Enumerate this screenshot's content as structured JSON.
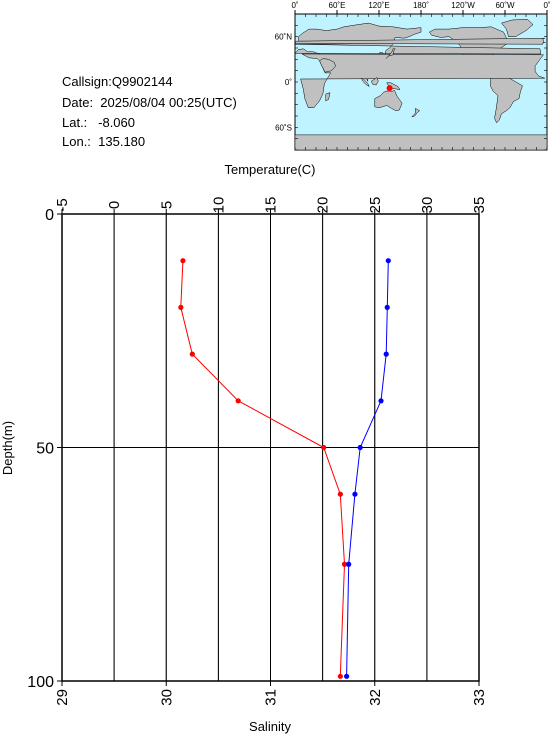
{
  "info": {
    "callsign": "Callsign:Q9902144",
    "date": "Date:  2025/08/04 00:25(UTC)",
    "lat": "Lat.:   -8.060",
    "lon": "Lon.:  135.180"
  },
  "map": {
    "lon_ticks": [
      "0˚",
      "60˚E",
      "120˚E",
      "180˚",
      "120˚W",
      "60˚W",
      "0˚"
    ],
    "lat_ticks": [
      "60˚N",
      "0˚",
      "60˚S"
    ],
    "marker_lon": 135.18,
    "marker_lat": -8.06,
    "ocean_color": "#bff3ff",
    "land_color": "#c0c0c0",
    "marker_color": "#ff0000"
  },
  "chart_data": {
    "type": "line",
    "ylabel": "Depth(m)",
    "ylim": [
      100,
      0
    ],
    "y_ticks": [
      "0",
      "50",
      "100"
    ],
    "grid": true,
    "temperature_axis": {
      "label": "Temperature(C)",
      "xlim": [
        -5,
        35
      ],
      "ticks": [
        "-5",
        "0",
        "5",
        "10",
        "15",
        "20",
        "25",
        "30",
        "35"
      ]
    },
    "salinity_axis": {
      "label": "Salinity",
      "xlim": [
        29,
        33
      ],
      "ticks": [
        "29",
        "30",
        "31",
        "32",
        "33"
      ]
    },
    "series": [
      {
        "axis": "temperature",
        "color": "#ff0000",
        "points": [
          [
            6.6,
            10
          ],
          [
            6.4,
            20
          ],
          [
            7.5,
            30
          ],
          [
            11.9,
            40
          ],
          [
            20.1,
            50
          ],
          [
            21.7,
            60
          ],
          [
            22.1,
            75
          ],
          [
            21.7,
            99
          ]
        ]
      },
      {
        "axis": "salinity",
        "color": "#0000ff",
        "points": [
          [
            32.13,
            10
          ],
          [
            32.12,
            20
          ],
          [
            32.11,
            30
          ],
          [
            32.06,
            40
          ],
          [
            31.86,
            50
          ],
          [
            31.81,
            60
          ],
          [
            31.75,
            75
          ],
          [
            31.73,
            99
          ]
        ]
      }
    ]
  }
}
